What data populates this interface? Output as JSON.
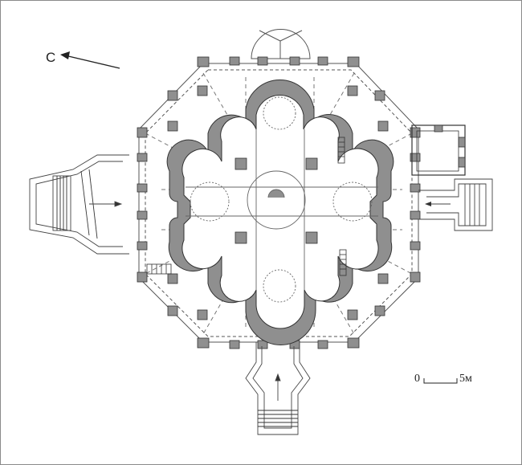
{
  "compass": {
    "label": "С",
    "icon": "north-arrow-icon"
  },
  "scale_bar": {
    "start_label": "0",
    "end_label": "5м"
  },
  "colors": {
    "wall_fill": "#8f8f8f",
    "line": "#4a4a4a",
    "background": "#ffffff"
  }
}
